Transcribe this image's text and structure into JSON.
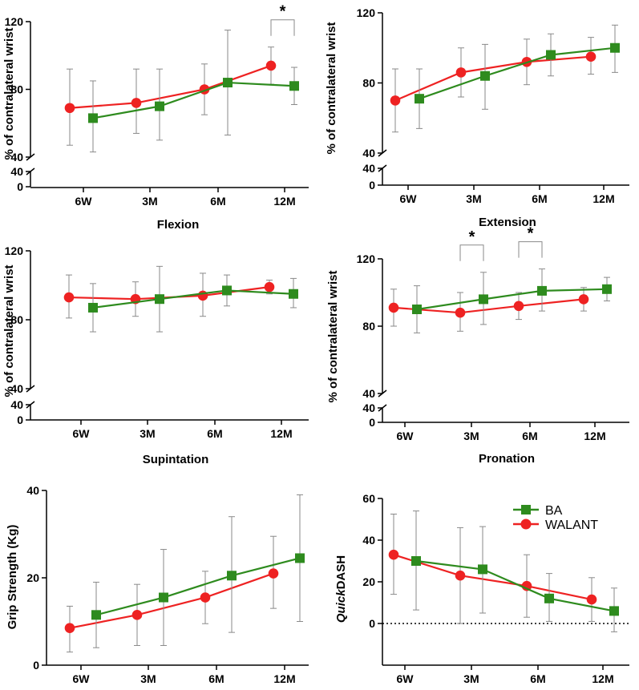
{
  "colors": {
    "ba": "#2e8b1e",
    "walant": "#ee2222",
    "axis": "#000000",
    "errorbar": "#8a8a8a"
  },
  "legend": {
    "ba": "BA",
    "walant": "WALANT"
  },
  "chart_data": [
    {
      "id": "flexion",
      "type": "line",
      "xlabel": "Flexion",
      "ylabel": "% of contralateral wrist",
      "categories": [
        "6W",
        "3M",
        "6M",
        "12M"
      ],
      "yticks_main": [
        "40",
        "80",
        "120"
      ],
      "yticks_low": [
        "0",
        "40"
      ],
      "ylim": [
        40,
        120
      ],
      "low_lim": [
        0,
        40
      ],
      "series": [
        {
          "name": "BA",
          "values": [
            63,
            70,
            84,
            82
          ],
          "err_low": [
            43,
            50,
            53,
            71
          ],
          "err_high": [
            85,
            92,
            115,
            93
          ]
        },
        {
          "name": "WALANT",
          "values": [
            69,
            72,
            80,
            94
          ],
          "err_low": [
            47,
            54,
            65,
            83
          ],
          "err_high": [
            92,
            92,
            95,
            105
          ]
        }
      ],
      "significance": [
        {
          "label": "*",
          "category": 3
        }
      ]
    },
    {
      "id": "extension",
      "type": "line",
      "xlabel": "Extension",
      "ylabel": "% of contralateral wrist",
      "categories": [
        "6W",
        "3M",
        "6M",
        "12M"
      ],
      "yticks_main": [
        "40",
        "80",
        "120"
      ],
      "yticks_low": [
        "0",
        "40"
      ],
      "ylim": [
        40,
        120
      ],
      "low_lim": [
        0,
        40
      ],
      "series": [
        {
          "name": "BA",
          "values": [
            71,
            84,
            96,
            100
          ],
          "err_low": [
            54,
            65,
            84,
            86
          ],
          "err_high": [
            88,
            102,
            108,
            113
          ]
        },
        {
          "name": "WALANT",
          "values": [
            70,
            86,
            92,
            95
          ],
          "err_low": [
            52,
            72,
            79,
            85
          ],
          "err_high": [
            88,
            100,
            105,
            106
          ]
        }
      ],
      "significance": []
    },
    {
      "id": "supination",
      "type": "line",
      "xlabel": "Supintation",
      "ylabel": "% of contralateral wrist",
      "categories": [
        "6W",
        "3M",
        "6M",
        "12M"
      ],
      "yticks_main": [
        "40",
        "80",
        "120"
      ],
      "yticks_low": [
        "0",
        "40"
      ],
      "ylim": [
        40,
        120
      ],
      "low_lim": [
        0,
        40
      ],
      "series": [
        {
          "name": "BA",
          "values": [
            87,
            92,
            97,
            95
          ],
          "err_low": [
            73,
            73,
            88,
            87
          ],
          "err_high": [
            101,
            111,
            106,
            104
          ]
        },
        {
          "name": "WALANT",
          "values": [
            93,
            92,
            94,
            99
          ],
          "err_low": [
            81,
            82,
            82,
            95
          ],
          "err_high": [
            106,
            102,
            107,
            103
          ]
        }
      ],
      "significance": []
    },
    {
      "id": "pronation",
      "type": "line",
      "xlabel": "Pronation",
      "ylabel": "% of contralateral wrist",
      "categories": [
        "6W",
        "3M",
        "6M",
        "12M"
      ],
      "yticks_main": [
        "40",
        "80",
        "120"
      ],
      "yticks_low": [
        "0",
        "40"
      ],
      "ylim": [
        40,
        120
      ],
      "low_lim": [
        0,
        40
      ],
      "series": [
        {
          "name": "BA",
          "values": [
            90,
            96,
            101,
            102
          ],
          "err_low": [
            76,
            81,
            89,
            95
          ],
          "err_high": [
            104,
            112,
            114,
            109
          ]
        },
        {
          "name": "WALANT",
          "values": [
            91,
            88,
            92,
            96
          ],
          "err_low": [
            80,
            77,
            84,
            89
          ],
          "err_high": [
            102,
            100,
            100,
            103
          ]
        }
      ],
      "significance": [
        {
          "label": "*",
          "category": 1
        },
        {
          "label": "*",
          "category": 2
        }
      ]
    },
    {
      "id": "grip",
      "type": "line",
      "xlabel": "",
      "ylabel": "Grip Strength (Kg)",
      "categories": [
        "6W",
        "3M",
        "6M",
        "12M"
      ],
      "yticks": [
        "0",
        "20",
        "40"
      ],
      "ylim": [
        0,
        40
      ],
      "series": [
        {
          "name": "BA",
          "values": [
            11.5,
            15.5,
            20.5,
            24.5
          ],
          "err_low": [
            4,
            4.5,
            7.5,
            10
          ],
          "err_high": [
            19,
            26.5,
            34,
            39
          ]
        },
        {
          "name": "WALANT",
          "values": [
            8.5,
            11.5,
            15.5,
            21
          ],
          "err_low": [
            3,
            4.5,
            9.5,
            13
          ],
          "err_high": [
            13.5,
            18.5,
            21.5,
            29.5
          ]
        }
      ],
      "significance": []
    },
    {
      "id": "quickdash",
      "type": "line",
      "xlabel": "",
      "ylabel_prefix": "Quick",
      "ylabel_suffix": "DASH",
      "categories": [
        "6W",
        "3M",
        "6M",
        "12M"
      ],
      "yticks": [
        "0",
        "20",
        "40",
        "60"
      ],
      "ylim": [
        -20,
        60
      ],
      "series": [
        {
          "name": "BA",
          "values": [
            30,
            26,
            12,
            6
          ],
          "err_low": [
            6.5,
            5,
            1,
            -4
          ],
          "err_high": [
            54,
            46.5,
            24,
            17
          ]
        },
        {
          "name": "WALANT",
          "values": [
            33,
            23,
            18,
            11.5
          ],
          "err_low": [
            14,
            0,
            3,
            1
          ],
          "err_high": [
            52.5,
            46,
            33,
            22
          ]
        }
      ],
      "significance": []
    }
  ]
}
